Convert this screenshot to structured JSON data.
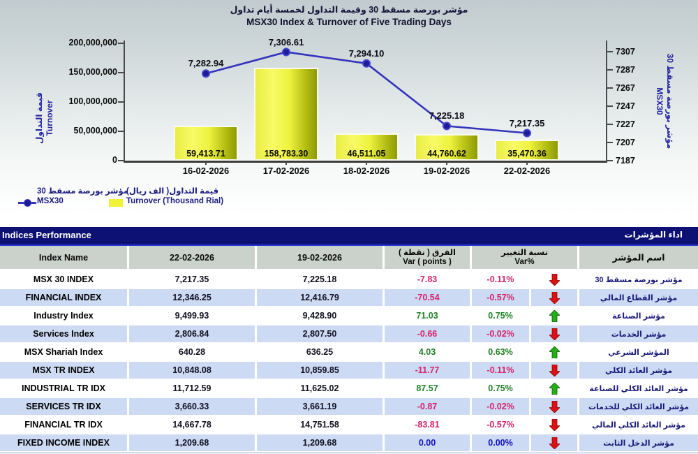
{
  "colors": {
    "header_navy": "#0c1173",
    "line_blue": "#3434bc",
    "marker_fill": "#1c1c96",
    "marker_ring": "#4343cf",
    "bar_yellow": "#f0f238",
    "negative": "#d6246a",
    "positive": "#1e8024",
    "zero_blue": "#1212c0",
    "arrow_up": "#22b014",
    "arrow_down": "#e01010",
    "row_stripe_blue": "#ccdaf3",
    "header_row_gray": "#cbd2cb"
  },
  "chart": {
    "title_ar": "مؤشر بورصة مسقط 30 وقيمة التداول لخمسة أيام تداول",
    "title_en": "MSX30 Index & Turnover of Five Trading Days",
    "left_axis_label_ar": "قيمة التداول",
    "left_axis_label_en": "Turnover",
    "right_axis_label_ar": "مؤشر بورصة مسقط 30",
    "right_axis_label_en": "MSX30",
    "legend": {
      "msx30_ar": "مؤشر بورصة مسقط 30",
      "msx30_en": "MSX30",
      "turnover_ar": "قيمة التداول( الف ريال)",
      "turnover_en": "Turnover (Thousand Rial)"
    }
  },
  "chart_data": {
    "type": "bar+line",
    "title": "MSX30 Index & Turnover of Five Trading Days",
    "categories": [
      "16-02-2026",
      "17-02-2026",
      "18-02-2026",
      "19-02-2026",
      "22-02-2026"
    ],
    "series": [
      {
        "name": "Turnover (Thousand Rial)",
        "type": "bar",
        "axis": "left",
        "values": [
          59413.71,
          158783.3,
          46511.05,
          44760.62,
          35470.36
        ],
        "labels": [
          "59,413.71",
          "158,783.30",
          "46,511.05",
          "44,760.62",
          "35,470.36"
        ]
      },
      {
        "name": "MSX30",
        "type": "line",
        "axis": "right",
        "values": [
          7282.94,
          7306.61,
          7294.1,
          7225.18,
          7217.35
        ],
        "labels": [
          "7,282.94",
          "7,306.61",
          "7,294.10",
          "7,225.18",
          "7,217.35"
        ]
      }
    ],
    "left_axis": {
      "title": "Turnover",
      "min": 0,
      "max": 200000000,
      "tick_step": 50000000,
      "tick_labels": [
        "0",
        "50,000,000",
        "100,000,000",
        "150,000,000",
        "200,000,000"
      ],
      "unit_note": "bar labels shown in thousand rial"
    },
    "right_axis": {
      "title": "MSX30",
      "min": 7187,
      "max": 7307,
      "tick_step": 20,
      "tick_labels": [
        "7187",
        "7207",
        "7227",
        "7247",
        "7267",
        "7287",
        "7307"
      ]
    },
    "grid": false,
    "legend_position": "bottom-left"
  },
  "table": {
    "bar_title_en": "Indices Performance",
    "bar_title_ar": "اداء المؤشرات",
    "columns": {
      "name_en": "Index Name",
      "date_latest": "22-02-2026",
      "date_prev": "19-02-2026",
      "var_points_ar": "الفرق ( نقطة )",
      "var_points_en": "Var ( points )",
      "var_pct_ar": "نسبة التغيير",
      "var_pct_en": "Var%",
      "name_ar": "اسم المؤشر"
    },
    "rows": [
      {
        "name_en": "MSX 30 INDEX",
        "latest": "7,217.35",
        "prev": "7,225.18",
        "var_points": "-7.83",
        "var_pct": "-0.11%",
        "trend": "down",
        "name_ar": "مؤشر بورصة مسقط 30"
      },
      {
        "name_en": "FINANCIAL INDEX",
        "latest": "12,346.25",
        "prev": "12,416.79",
        "var_points": "-70.54",
        "var_pct": "-0.57%",
        "trend": "down",
        "name_ar": "مؤشر القطاع المالي"
      },
      {
        "name_en": "Industry Index",
        "latest": "9,499.93",
        "prev": "9,428.90",
        "var_points": "71.03",
        "var_pct": "0.75%",
        "trend": "up",
        "name_ar": "مؤشر الصناعة"
      },
      {
        "name_en": "Services Index",
        "latest": "2,806.84",
        "prev": "2,807.50",
        "var_points": "-0.66",
        "var_pct": "-0.02%",
        "trend": "down",
        "name_ar": "مؤشر الخدمات"
      },
      {
        "name_en": "MSX Shariah Index",
        "latest": "640.28",
        "prev": "636.25",
        "var_points": "4.03",
        "var_pct": "0.63%",
        "trend": "up",
        "name_ar": "المؤشر الشرعي"
      },
      {
        "name_en": "MSX TR INDEX",
        "latest": "10,848.08",
        "prev": "10,859.85",
        "var_points": "-11.77",
        "var_pct": "-0.11%",
        "trend": "down",
        "name_ar": "مؤشر العائد الكلي"
      },
      {
        "name_en": "INDUSTRIAL TR IDX",
        "latest": "11,712.59",
        "prev": "11,625.02",
        "var_points": "87.57",
        "var_pct": "0.75%",
        "trend": "up",
        "name_ar": "مؤشر العائد الكلي للصناعة"
      },
      {
        "name_en": "SERVICES TR IDX",
        "latest": "3,660.33",
        "prev": "3,661.19",
        "var_points": "-0.87",
        "var_pct": "-0.02%",
        "trend": "down",
        "name_ar": "مؤشر العائد الكلي للخدمات"
      },
      {
        "name_en": "FINANCIAL TR IDX",
        "latest": "14,667.78",
        "prev": "14,751.58",
        "var_points": "-83.81",
        "var_pct": "-0.57%",
        "trend": "down",
        "name_ar": "مؤشر العائد الكلي المالي"
      },
      {
        "name_en": "FIXED INCOME INDEX",
        "latest": "1,209.68",
        "prev": "1,209.68",
        "var_points": "0.00",
        "var_pct": "0.00%",
        "trend": "down",
        "name_ar": "مؤشر الدخل الثابت"
      }
    ]
  }
}
